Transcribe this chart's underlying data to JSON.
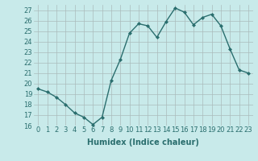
{
  "x": [
    0,
    1,
    2,
    3,
    4,
    5,
    6,
    7,
    8,
    9,
    10,
    11,
    12,
    13,
    14,
    15,
    16,
    17,
    18,
    19,
    20,
    21,
    22,
    23
  ],
  "y": [
    19.5,
    19.2,
    18.7,
    18.0,
    17.2,
    16.8,
    16.1,
    16.8,
    20.3,
    22.3,
    24.8,
    25.7,
    25.5,
    24.4,
    25.9,
    27.2,
    26.8,
    25.6,
    26.3,
    26.6,
    25.5,
    23.3,
    21.3,
    21.0
  ],
  "line_color": "#2a6e6e",
  "marker": "D",
  "marker_size": 2.0,
  "line_width": 1.0,
  "bg_color": "#c8eaea",
  "grid_color": "#aabcbc",
  "xlabel": "Humidex (Indice chaleur)",
  "xlabel_fontsize": 7,
  "tick_fontsize": 6,
  "ylim": [
    16,
    27.5
  ],
  "yticks": [
    16,
    17,
    18,
    19,
    20,
    21,
    22,
    23,
    24,
    25,
    26,
    27
  ],
  "xticks": [
    0,
    1,
    2,
    3,
    4,
    5,
    6,
    7,
    8,
    9,
    10,
    11,
    12,
    13,
    14,
    15,
    16,
    17,
    18,
    19,
    20,
    21,
    22,
    23
  ],
  "xlim": [
    -0.5,
    23.5
  ]
}
